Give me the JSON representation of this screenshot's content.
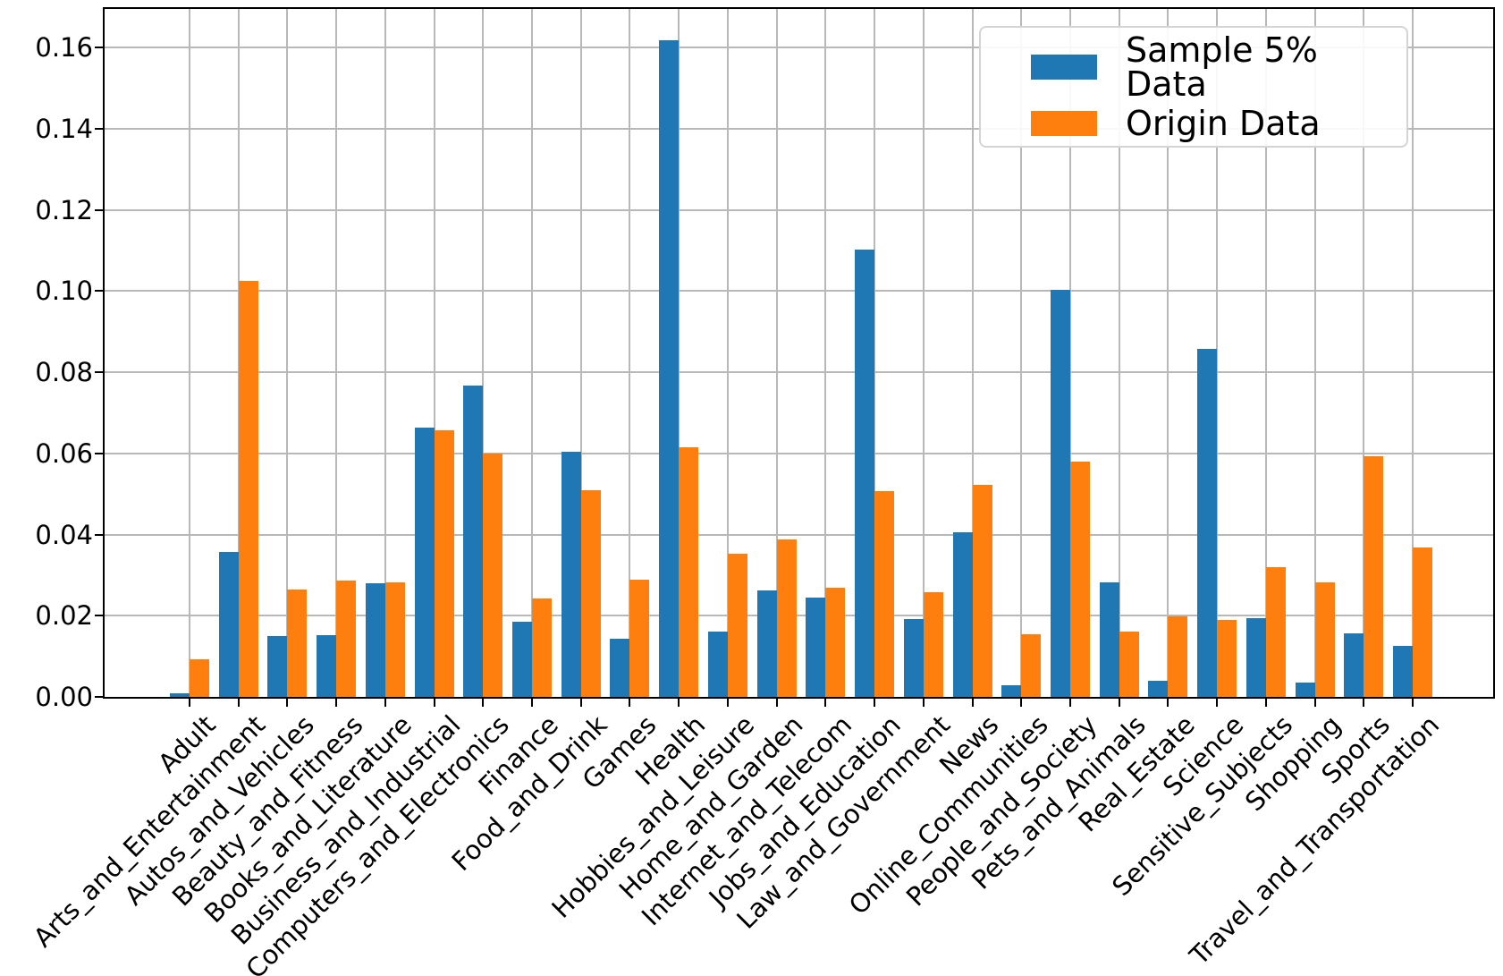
{
  "chart_data": {
    "type": "bar",
    "title": "",
    "xlabel": "",
    "ylabel": "",
    "grid": true,
    "legend_position": "upper right",
    "background_color": "#ffffff",
    "grid_color": "#b8b8b8",
    "ylim": [
      0,
      0.1695
    ],
    "yticks": [
      "0.00",
      "0.02",
      "0.04",
      "0.06",
      "0.08",
      "0.10",
      "0.12",
      "0.14",
      "0.16"
    ],
    "ytick_step": 0.02,
    "categories": [
      "Adult",
      "Arts_and_Entertainment",
      "Autos_and_Vehicles",
      "Beauty_and_Fitness",
      "Books_and_Literature",
      "Business_and_Industrial",
      "Computers_and_Electronics",
      "Finance",
      "Food_and_Drink",
      "Games",
      "Health",
      "Hobbies_and_Leisure",
      "Home_and_Garden",
      "Internet_and_Telecom",
      "Jobs_and_Education",
      "Law_and_Government",
      "News",
      "Online_Communities",
      "People_and_Society",
      "Pets_and_Animals",
      "Real_Estate",
      "Science",
      "Sensitive_Subjects",
      "Shopping",
      "Sports",
      "Travel_and_Transportation"
    ],
    "series": [
      {
        "name": "Sample 5% Data",
        "color": "#1f77b4",
        "values": [
          0.0008,
          0.0356,
          0.0149,
          0.0151,
          0.0281,
          0.0663,
          0.0768,
          0.0185,
          0.0605,
          0.0144,
          0.1618,
          0.0162,
          0.0263,
          0.0245,
          0.1102,
          0.0191,
          0.0405,
          0.0028,
          0.1003,
          0.0282,
          0.0039,
          0.0858,
          0.0194,
          0.0035,
          0.0156,
          0.0126
        ]
      },
      {
        "name": "Origin Data",
        "color": "#ff7f0e",
        "values": [
          0.0092,
          0.1025,
          0.0265,
          0.0286,
          0.0283,
          0.0657,
          0.0599,
          0.0243,
          0.051,
          0.0289,
          0.0614,
          0.0352,
          0.0388,
          0.0268,
          0.0506,
          0.0257,
          0.0523,
          0.0154,
          0.0579,
          0.0162,
          0.0199,
          0.0189,
          0.032,
          0.0283,
          0.0593,
          0.0368
        ]
      }
    ]
  }
}
